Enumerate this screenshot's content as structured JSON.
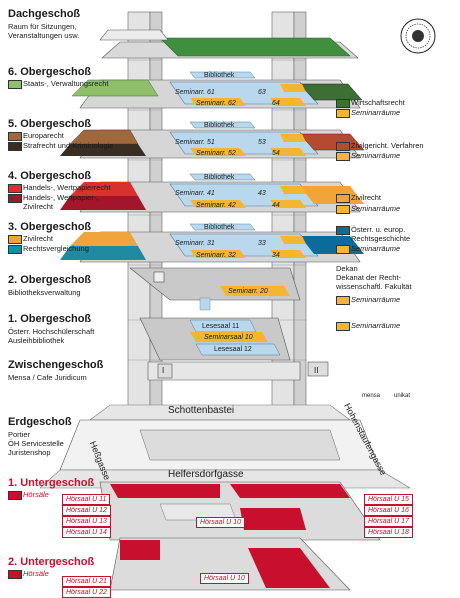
{
  "colors": {
    "dach": "#3f8f3f",
    "wirtschaft": "#3d6e34",
    "seminar": "#f2b632",
    "room_blue": "#b9d8ee",
    "floor_grey": "#c9c9c9",
    "europa": "#a0663c",
    "strafrecht": "#3a2e23",
    "zivilgericht": "#b54b2e",
    "handels_wp": "#d9312e",
    "handels_wp2": "#a3152a",
    "zivilrecht": "#f0a43a",
    "rechtsvergl": "#1f8aa0",
    "oesterr": "#0b6c9c",
    "red": "#c8102e"
  },
  "floors": {
    "dach": {
      "title": "Dachgeschoß",
      "line1": "Raum für Sitzungen,",
      "line2": "Veranstaltungen usw."
    },
    "og6": {
      "title": "6. Obergeschoß",
      "legend1": "Staats-, Verwaltungsrecht",
      "legend_r1": "Wirtschaftsrecht",
      "legend_r2": "Seminarräume"
    },
    "og5": {
      "title": "5. Obergeschoß",
      "legend1": "Europarecht",
      "legend2": "Strafrecht und Kriminologie",
      "legend_r1": "Zivilgericht. Verfahren",
      "legend_r2": "Seminarräume"
    },
    "og4": {
      "title": "4. Obergeschoß",
      "legend1": "Handels-, Wertpapierrecht",
      "legend2a": "Handels-, Wertpapier-,",
      "legend2b": "Zivilrecht",
      "legend_r1": "Zivilrecht",
      "legend_r2": "Seminarräume"
    },
    "og3": {
      "title": "3. Obergeschoß",
      "legend1": "Zivilrecht",
      "legend2": "Rechtsvergleichung",
      "legend_r1a": "Österr. u. europ.",
      "legend_r1b": "Rechtsgeschichte",
      "legend_r2": "Seminarräume"
    },
    "og2": {
      "title": "2. Obergeschoß",
      "line1": "Bibliotheksverwaltung",
      "dekan1": "Dekan",
      "dekan2": "Dekanat der Recht-",
      "dekan3": "wissenschaftl. Fakultät",
      "legend_r2": "Seminarräume"
    },
    "og1": {
      "title": "1. Obergeschoß",
      "line1": "Österr. Hochschülerschaft",
      "line2": "Ausleihbibliothek",
      "legend_r2": "Seminarräume"
    },
    "zw": {
      "title": "Zwischengeschoß",
      "line1": "Mensa / Cafe Juridicum"
    },
    "eg": {
      "title": "Erdgeschoß",
      "line1": "Portier",
      "line2": "ÖH Servicestelle",
      "line3": "Juristenshop"
    },
    "ug1": {
      "title": "1. Untergeschoß",
      "line1": "Hörsäle"
    },
    "ug2": {
      "title": "2. Untergeschoß",
      "line1": "Hörsäle"
    }
  },
  "rooms": {
    "bib6": "Bibliothek",
    "sem61": "Seminarr. 61",
    "sem62": "Seminarr. 62",
    "sem63": "63",
    "sem64": "64",
    "bib5": "Bibliothek",
    "sem51": "Seminarr. 51",
    "sem52": "Seminarr. 52",
    "sem53": "53",
    "sem54": "54",
    "bib4": "Bibliothek",
    "sem41": "Seminarr. 41",
    "sem42": "Seminarr. 42",
    "sem43": "43",
    "sem44": "44",
    "bib3": "Bibliothek",
    "sem31": "Seminarr. 31",
    "sem32": "Seminarr. 32",
    "sem33": "33",
    "sem34": "34",
    "sem20": "Seminarr. 20",
    "ls11": "Lesesaal 11",
    "sem10": "Seminarsaal 10",
    "ls12": "Lesesaal 12",
    "hu10a": "Hörsaal U 10",
    "hu10b": "Hörsaal U 10",
    "zw_i": "I",
    "zw_ii": "II"
  },
  "streets": {
    "schottenbastei": "Schottenbastei",
    "helfersdorf": "Helfersdorfgasse",
    "hess": "Heßgasse",
    "hohenstaufen": "Hohenstaufengasse",
    "unikat": "unikat",
    "mensa": "mensa"
  },
  "hoersaele": {
    "left": [
      "Hörsaal U 11",
      "Hörsaal U 12",
      "Hörsaal U 13",
      "Hörsaal U 14"
    ],
    "right": [
      "Hörsaal U 15",
      "Hörsaal U 16",
      "Hörsaal U 17",
      "Hörsaal U 18"
    ],
    "bottom": [
      "Hörsaal U 21",
      "Hörsaal U 22"
    ]
  }
}
